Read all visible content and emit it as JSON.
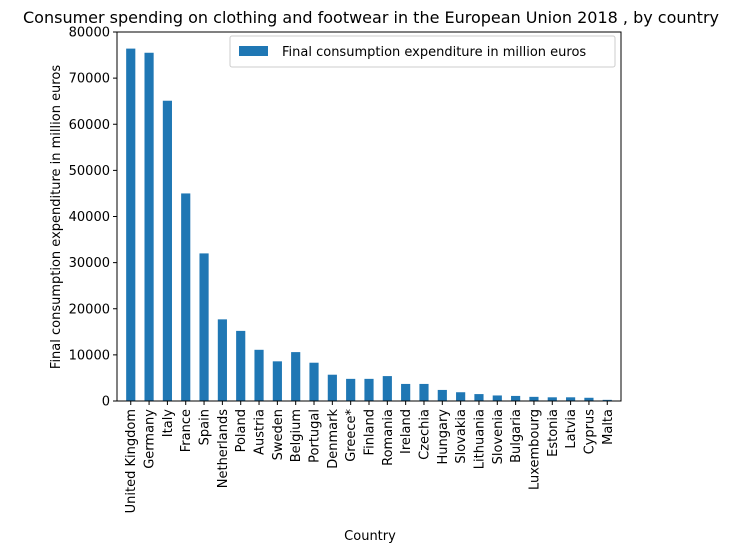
{
  "chart_data": {
    "type": "bar",
    "title": "Consumer spending on clothing and footwear in the European Union 2018 , by country",
    "xlabel": "Country",
    "ylabel": "Final consumption expenditure in million euros",
    "ylim": [
      0,
      80000
    ],
    "yticks": [
      0,
      10000,
      20000,
      30000,
      40000,
      50000,
      60000,
      70000,
      80000
    ],
    "grid": false,
    "legend_position": "top-right",
    "colors": {
      "bar": "#1f77b4"
    },
    "categories": [
      "United Kingdom",
      "Germany",
      "Italy",
      "France",
      "Spain",
      "Netherlands",
      "Poland",
      "Austria",
      "Sweden",
      "Belgium",
      "Portugal",
      "Denmark",
      "Greece*",
      "Finland",
      "Romania",
      "Ireland",
      "Czechia",
      "Hungary",
      "Slovakia",
      "Lithuania",
      "Slovenia",
      "Bulgaria",
      "Luxembourg",
      "Estonia",
      "Latvia",
      "Cyprus",
      "Malta"
    ],
    "series": [
      {
        "name": "Final consumption expenditure in million euros",
        "values": [
          76400,
          75500,
          65100,
          45000,
          32000,
          17700,
          15200,
          11100,
          8600,
          10600,
          8300,
          5700,
          4800,
          4800,
          5400,
          3700,
          3700,
          2400,
          1900,
          1500,
          1200,
          1100,
          900,
          800,
          800,
          700,
          250
        ]
      }
    ]
  }
}
